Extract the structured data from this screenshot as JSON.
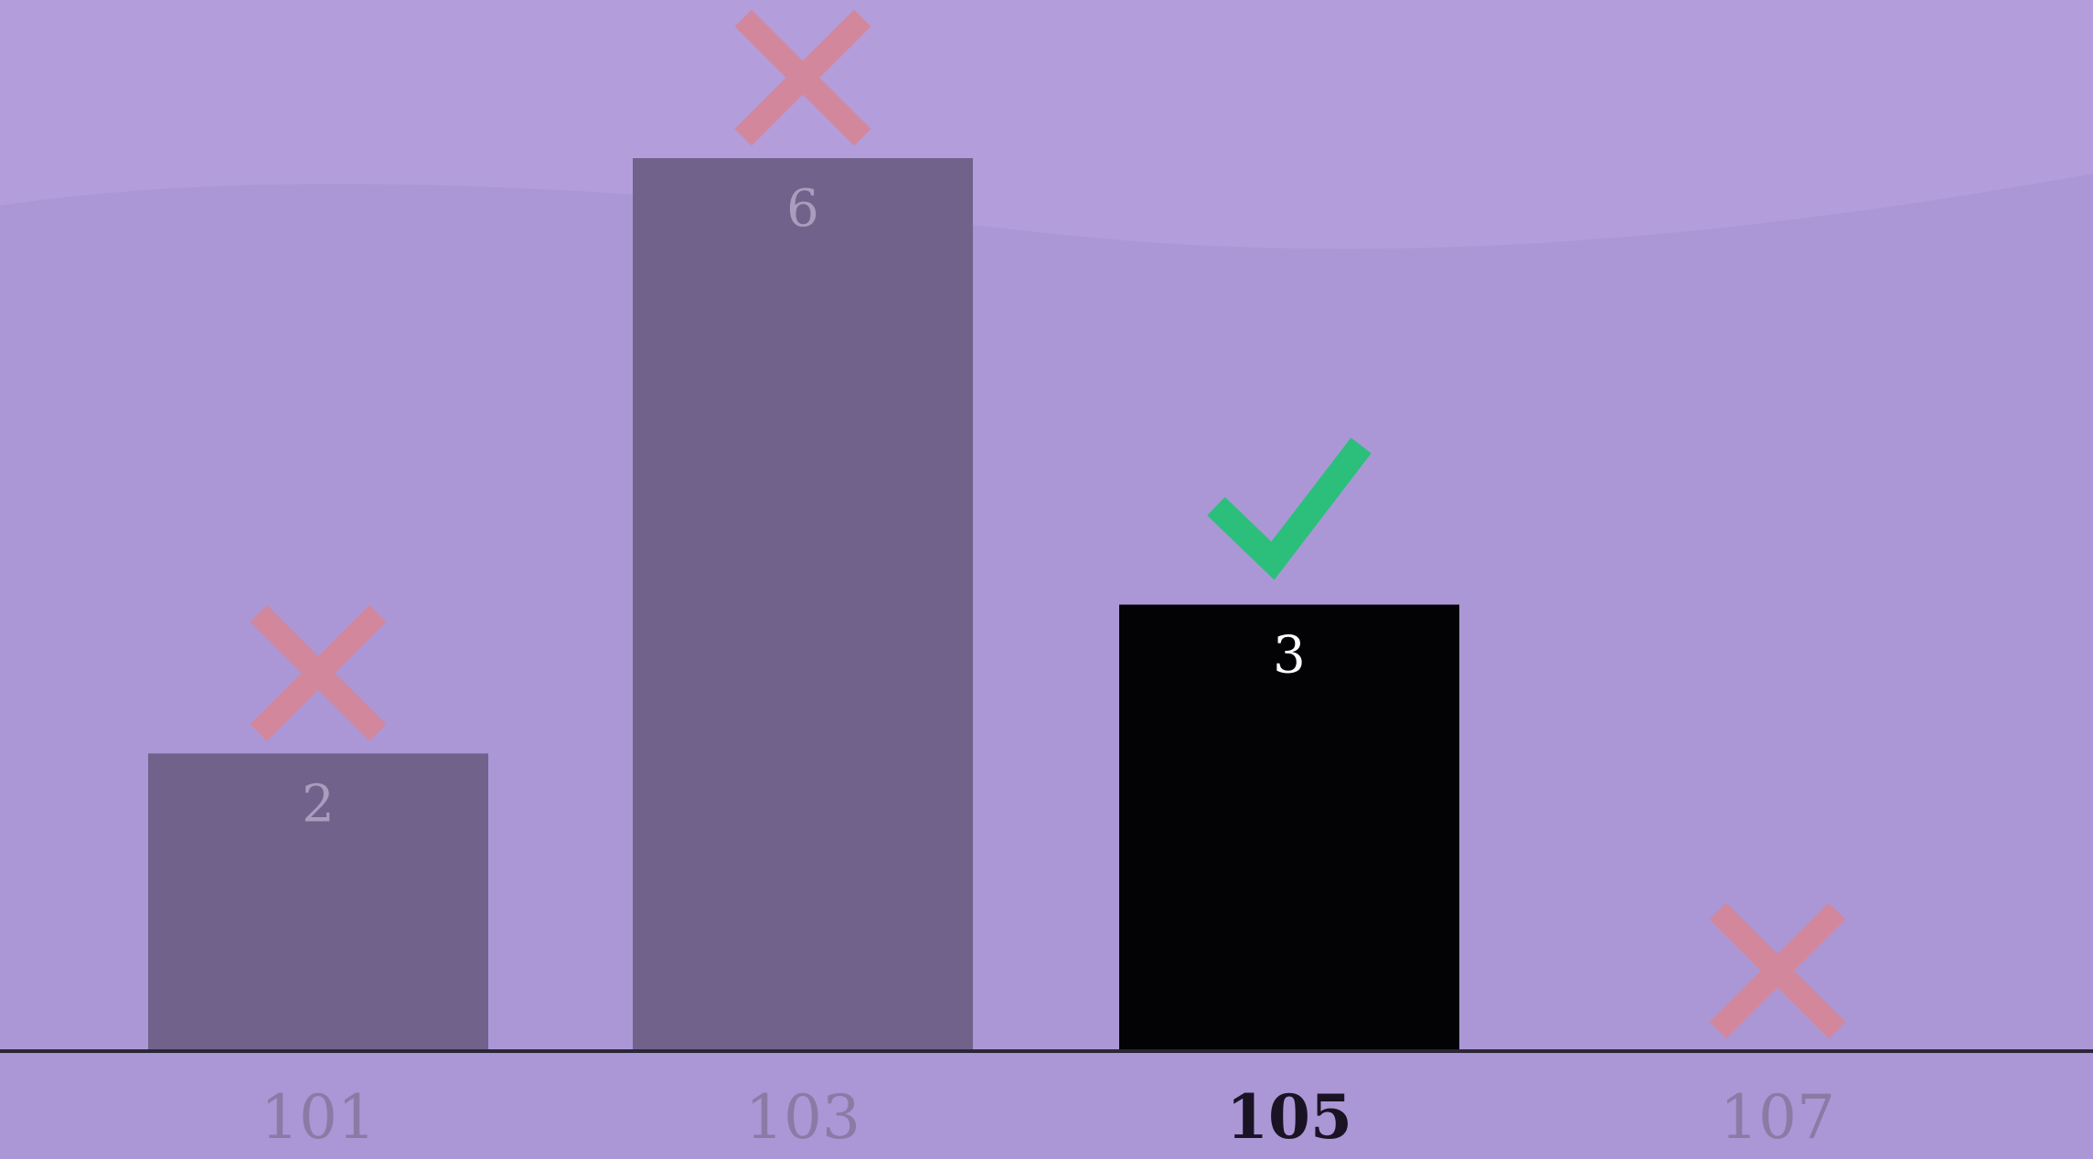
{
  "chart_data": {
    "type": "bar",
    "categories": [
      "101",
      "103",
      "105",
      "107"
    ],
    "values": [
      2,
      6,
      3,
      0
    ],
    "value_labels": [
      "2",
      "6",
      "3",
      ""
    ],
    "marks": [
      "cross",
      "cross",
      "check",
      "cross"
    ],
    "highlighted_index": 2,
    "ylim": [
      0,
      7
    ],
    "grid": false,
    "legend": "none"
  },
  "colors": {
    "background": "#ab97d6",
    "background_top": "#b39ddb",
    "bar": "#71628c",
    "bar_highlight": "#030305",
    "bar_label": "#ab9bbc",
    "bar_label_highlight": "#ffffff",
    "tick_label": "#8c7aa5",
    "tick_label_highlight": "#1a1324",
    "axis": "#2c2638",
    "cross": "#d2879c",
    "check": "#2bbf7b"
  },
  "icons": {
    "cross": "cross-icon",
    "check": "check-icon"
  }
}
